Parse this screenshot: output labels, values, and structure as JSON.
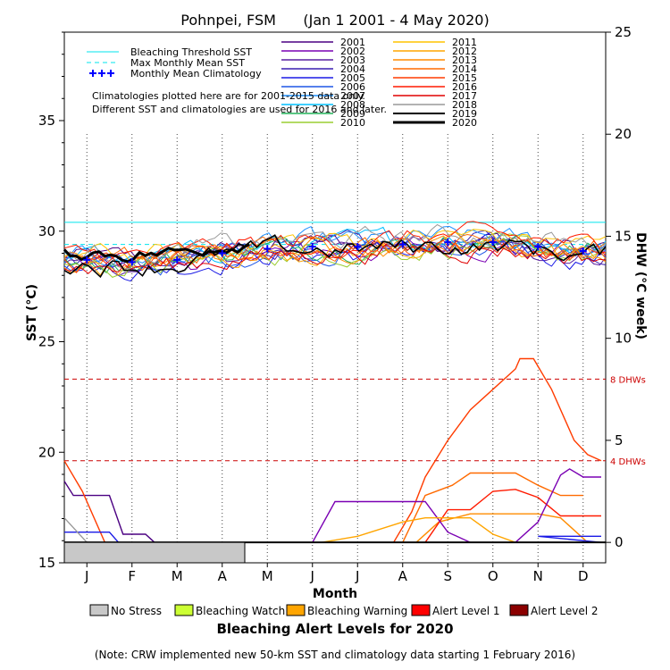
{
  "chart_data": {
    "type": "line",
    "title": "Pohnpei, FSM      (Jan 1 2001 - 4 May 2020)",
    "xlabel": "Month",
    "ylabel_left": "SST (°C)",
    "ylabel_right": "DHW (°C week)",
    "months": [
      "J",
      "F",
      "M",
      "A",
      "M",
      "J",
      "J",
      "A",
      "S",
      "O",
      "N",
      "D"
    ],
    "sst_ylim": [
      15,
      39
    ],
    "sst_ticks": [
      15,
      20,
      25,
      30,
      35
    ],
    "dhw_ylim": [
      -1,
      25
    ],
    "dhw_ticks": [
      0,
      5,
      10,
      15,
      20,
      25
    ],
    "bleaching_threshold_sst": 30.4,
    "max_monthly_mean_sst": 29.4,
    "dhw_lines": [
      {
        "label": "8 DHWs",
        "value": 8
      },
      {
        "label": "4 DHWs",
        "value": 4
      }
    ],
    "monthly_mean_climatology": [
      28.7,
      28.6,
      28.7,
      29.0,
      29.2,
      29.3,
      29.3,
      29.4,
      29.5,
      29.5,
      29.3,
      29.1
    ],
    "legend_left": [
      {
        "label": "Bleaching Threshold SST",
        "color": "#00e5ee",
        "style": "solid"
      },
      {
        "label": "Max Monthly Mean SST",
        "color": "#00e5ee",
        "style": "dashed"
      },
      {
        "label": "Monthly Mean Climatology",
        "color": "#0000ff",
        "style": "plus"
      }
    ],
    "years": [
      {
        "year": "2001",
        "color": "#4b0082"
      },
      {
        "year": "2002",
        "color": "#7a00b3"
      },
      {
        "year": "2003",
        "color": "#5a20a0"
      },
      {
        "year": "2004",
        "color": "#3a1fb0"
      },
      {
        "year": "2005",
        "color": "#1a1ae6"
      },
      {
        "year": "2006",
        "color": "#1e56e6"
      },
      {
        "year": "2007",
        "color": "#1e90ff"
      },
      {
        "year": "2008",
        "color": "#00bfff"
      },
      {
        "year": "2009",
        "color": "#22b35a"
      },
      {
        "year": "2010",
        "color": "#9acd32"
      },
      {
        "year": "2011",
        "color": "#ffc400"
      },
      {
        "year": "2012",
        "color": "#ffa500"
      },
      {
        "year": "2013",
        "color": "#ff8c00"
      },
      {
        "year": "2014",
        "color": "#ff6a00"
      },
      {
        "year": "2015",
        "color": "#ff3c00"
      },
      {
        "year": "2016",
        "color": "#ff1a00"
      },
      {
        "year": "2017",
        "color": "#e00000"
      },
      {
        "year": "2018",
        "color": "#999999"
      },
      {
        "year": "2019",
        "color": "#000000"
      },
      {
        "year": "2020",
        "color": "#000000"
      }
    ],
    "note_text": "Climatologies plotted here are for 2001-2015 data only.\nDifferent SST and climatologies are used for 2016 and later.",
    "dhw_series": [
      {
        "year": "2001",
        "points": [
          [
            0,
            3
          ],
          [
            0.2,
            2.3
          ],
          [
            1,
            2.3
          ],
          [
            1.3,
            0.4
          ],
          [
            1.8,
            0.4
          ],
          [
            2,
            0
          ]
        ]
      },
      {
        "year": "2014",
        "points": [
          [
            7.5,
            0
          ],
          [
            8.0,
            2.3
          ],
          [
            8.6,
            2.8
          ],
          [
            9.0,
            3.4
          ],
          [
            9.5,
            3.4
          ],
          [
            10,
            3.4
          ],
          [
            10.5,
            2.8
          ],
          [
            11,
            2.3
          ],
          [
            11.5,
            2.3
          ]
        ]
      },
      {
        "year": "2015",
        "points": [
          [
            0,
            4
          ],
          [
            0.4,
            2.5
          ],
          [
            0.9,
            0
          ],
          [
            7.3,
            0
          ],
          [
            7.7,
            1.5
          ],
          [
            8,
            3.2
          ],
          [
            8.5,
            5
          ],
          [
            9,
            6.5
          ],
          [
            9.5,
            7.5
          ],
          [
            10,
            8.5
          ],
          [
            10.1,
            9
          ],
          [
            10.4,
            9
          ],
          [
            10.8,
            7.5
          ],
          [
            11.3,
            5
          ],
          [
            11.6,
            4.3
          ],
          [
            11.9,
            4
          ]
        ]
      },
      {
        "year": "2013",
        "points": [
          [
            7.8,
            0
          ],
          [
            8.3,
            1
          ],
          [
            9,
            1.4
          ],
          [
            9.5,
            1.4
          ],
          [
            10,
            1.4
          ],
          [
            10.5,
            1.4
          ],
          [
            11,
            1.2
          ],
          [
            11.6,
            0
          ],
          [
            11.9,
            0
          ]
        ]
      },
      {
        "year": "2016",
        "points": [
          [
            8,
            0
          ],
          [
            8.5,
            1.6
          ],
          [
            9,
            1.6
          ],
          [
            9.5,
            2.5
          ],
          [
            10,
            2.6
          ],
          [
            10.5,
            2.2
          ],
          [
            11,
            1.3
          ],
          [
            11.5,
            1.3
          ],
          [
            11.9,
            1.3
          ]
        ]
      },
      {
        "year": "2002",
        "points": [
          [
            5.5,
            0
          ],
          [
            6,
            2
          ],
          [
            6.5,
            2
          ],
          [
            7,
            2
          ],
          [
            7.5,
            2
          ],
          [
            8,
            2
          ],
          [
            8.5,
            0.5
          ],
          [
            9,
            0
          ],
          [
            10,
            0
          ],
          [
            10.5,
            1.0
          ],
          [
            11,
            3.3
          ],
          [
            11.2,
            3.6
          ],
          [
            11.5,
            3.2
          ],
          [
            11.9,
            3.2
          ]
        ]
      },
      {
        "year": "2012",
        "points": [
          [
            5.7,
            0
          ],
          [
            6.5,
            0.3
          ],
          [
            7.5,
            1.0
          ],
          [
            8,
            1.2
          ],
          [
            8.5,
            1.2
          ],
          [
            9,
            1.2
          ],
          [
            9.5,
            0.4
          ],
          [
            10,
            0
          ],
          [
            11.9,
            0
          ]
        ]
      },
      {
        "year": "2005",
        "points": [
          [
            0,
            0.5
          ],
          [
            1,
            0.5
          ],
          [
            1.2,
            0
          ],
          [
            11.9,
            0
          ],
          [
            10.5,
            0.3
          ],
          [
            11.9,
            0.3
          ]
        ]
      },
      {
        "year": "2018",
        "points": [
          [
            0,
            1.2
          ],
          [
            0.5,
            0
          ],
          [
            11.9,
            0
          ]
        ]
      }
    ],
    "alert_2020": [
      {
        "start": 0,
        "end": 4,
        "level": "No Stress"
      }
    ]
  },
  "bottom_legend": {
    "items": [
      {
        "label": "No Stress",
        "color": "#c8c8c8"
      },
      {
        "label": "Bleaching Watch",
        "color": "#ccff33"
      },
      {
        "label": "Bleaching Warning",
        "color": "#ffa500"
      },
      {
        "label": "Alert Level 1",
        "color": "#ff0000"
      },
      {
        "label": "Alert Level 2",
        "color": "#8b0000"
      }
    ],
    "title": "Bleaching Alert Levels for 2020",
    "note": "(Note: CRW implemented new 50-km SST and climatology data starting 1 February 2016)"
  }
}
